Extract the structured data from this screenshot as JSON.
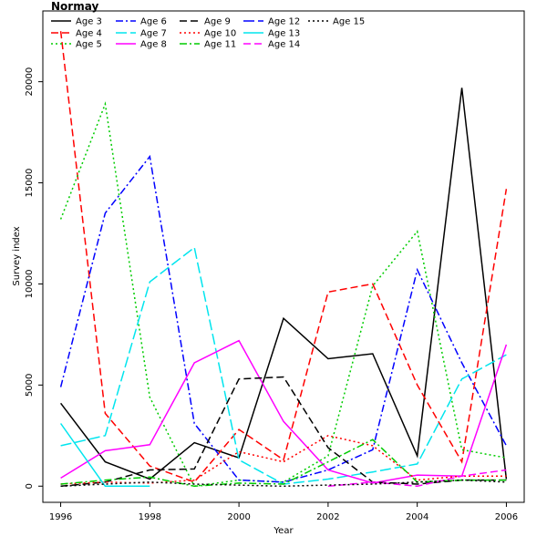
{
  "chart_data": {
    "type": "line",
    "title": "Normay",
    "xlabel": "Year",
    "ylabel": "Survey index",
    "xlim": [
      1995.6,
      2006.4
    ],
    "ylim": [
      -800,
      23500
    ],
    "x_ticks": [
      1996,
      1998,
      2000,
      2002,
      2004,
      2006
    ],
    "y_ticks": [
      0,
      5000,
      10000,
      15000,
      20000
    ],
    "legend_position": "top-left",
    "x": [
      1996,
      1997,
      1998,
      1999,
      2000,
      2001,
      2002,
      2003,
      2004,
      2005,
      2006
    ],
    "series": [
      {
        "name": "Age 3",
        "color": "#000000",
        "dash": "",
        "values": [
          4100,
          1200,
          350,
          2150,
          1400,
          8300,
          6300,
          6550,
          1500,
          19700,
          350
        ]
      },
      {
        "name": "Age 4",
        "color": "#ff0000",
        "dash": "8,4",
        "values": [
          22500,
          3600,
          1000,
          200,
          2800,
          1300,
          9600,
          10000,
          5000,
          1200,
          14700
        ]
      },
      {
        "name": "Age 5",
        "color": "#00cc00",
        "dash": "2,3",
        "values": [
          13200,
          18900,
          4400,
          0,
          300,
          200,
          1500,
          9900,
          12600,
          1800,
          1400
        ]
      },
      {
        "name": "Age 6",
        "color": "#0000ff",
        "dash": "8,3,2,3",
        "values": [
          4900,
          13500,
          16300,
          3100,
          300,
          200,
          800,
          1800,
          10700,
          6100,
          2000
        ]
      },
      {
        "name": "Age 7",
        "color": "#00e5ee",
        "dash": "12,4",
        "values": [
          2000,
          2500,
          10100,
          11800,
          1300,
          100,
          350,
          700,
          1100,
          5300,
          6500
        ]
      },
      {
        "name": "Age 8",
        "color": "#ff00ff",
        "dash": "",
        "values": [
          400,
          1750,
          2050,
          6100,
          7200,
          3200,
          800,
          150,
          550,
          500,
          7000
        ]
      },
      {
        "name": "Age 9",
        "color": "#000000",
        "dash": "8,4",
        "values": [
          0,
          200,
          800,
          850,
          5300,
          5400,
          1900,
          200,
          100,
          300,
          300
        ]
      },
      {
        "name": "Age 10",
        "color": "#ff0000",
        "dash": "2,3",
        "values": [
          100,
          200,
          150,
          300,
          1700,
          1200,
          2500,
          2000,
          300,
          500,
          500
        ]
      },
      {
        "name": "Age 11",
        "color": "#00cc00",
        "dash": "8,3,2,3",
        "values": [
          100,
          300,
          450,
          0,
          150,
          100,
          1200,
          2300,
          200,
          300,
          300
        ]
      },
      {
        "name": "Age 12",
        "color": "#0000ff",
        "dash": "12,4",
        "values": null
      },
      {
        "name": "Age 13",
        "color": "#00e5ee",
        "dash": "",
        "values": [
          3100,
          0,
          0,
          null,
          null,
          null,
          null,
          null,
          null,
          null,
          null
        ]
      },
      {
        "name": "Age 14",
        "color": "#ff00ff",
        "dash": "8,4",
        "values": [
          null,
          null,
          null,
          null,
          null,
          null,
          0,
          200,
          0,
          500,
          800
        ]
      },
      {
        "name": "Age 15",
        "color": "#000000",
        "dash": "2,3",
        "values": [
          0,
          100,
          200,
          100,
          50,
          0,
          50,
          100,
          200,
          300,
          200
        ]
      }
    ]
  }
}
